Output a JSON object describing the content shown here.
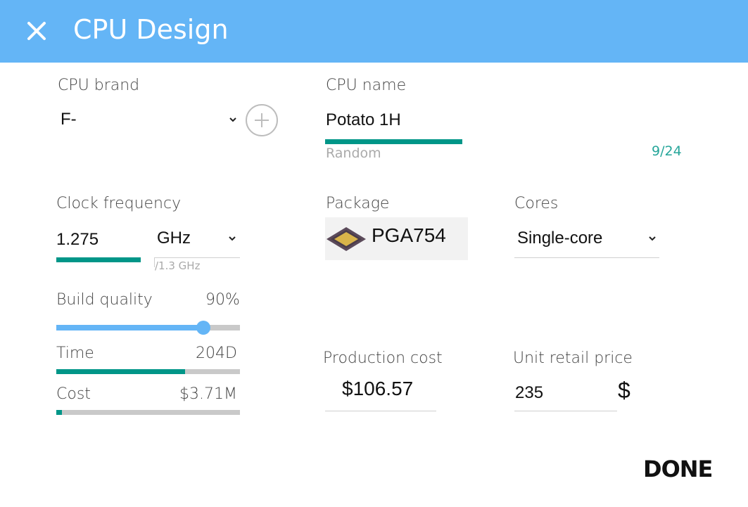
{
  "window": {
    "title": "CPU Design",
    "close_icon": "close-icon"
  },
  "brand": {
    "label": "CPU brand",
    "value": "F-",
    "add_icon": "plus-circle-icon"
  },
  "name": {
    "label": "CPU name",
    "value": "Potato 1H",
    "helper": "Random",
    "counter": "9/24"
  },
  "clock": {
    "label": "Clock frequency",
    "value": "1.275",
    "unit": "GHz",
    "max": "/1.3 GHz",
    "fill_fraction": 0.46
  },
  "package": {
    "label": "Package",
    "value": "PGA754",
    "icon": "cpu-chip-icon"
  },
  "cores": {
    "label": "Cores",
    "value": "Single-core"
  },
  "build_quality": {
    "label": "Build quality",
    "value": "90%",
    "level": 0.8
  },
  "time": {
    "label": "Time",
    "value": "204D",
    "progress": 0.7
  },
  "cost": {
    "label": "Cost",
    "value": "$3.71M",
    "progress": 0.03
  },
  "production_cost": {
    "label": "Production cost",
    "value": "$106.57"
  },
  "retail_price": {
    "label": "Unit retail price",
    "value": "235",
    "currency": "$"
  },
  "actions": {
    "done_label": "DONE"
  },
  "colors": {
    "header": "#64b5f6",
    "accent": "#009688",
    "slider": "#64b5f6"
  }
}
